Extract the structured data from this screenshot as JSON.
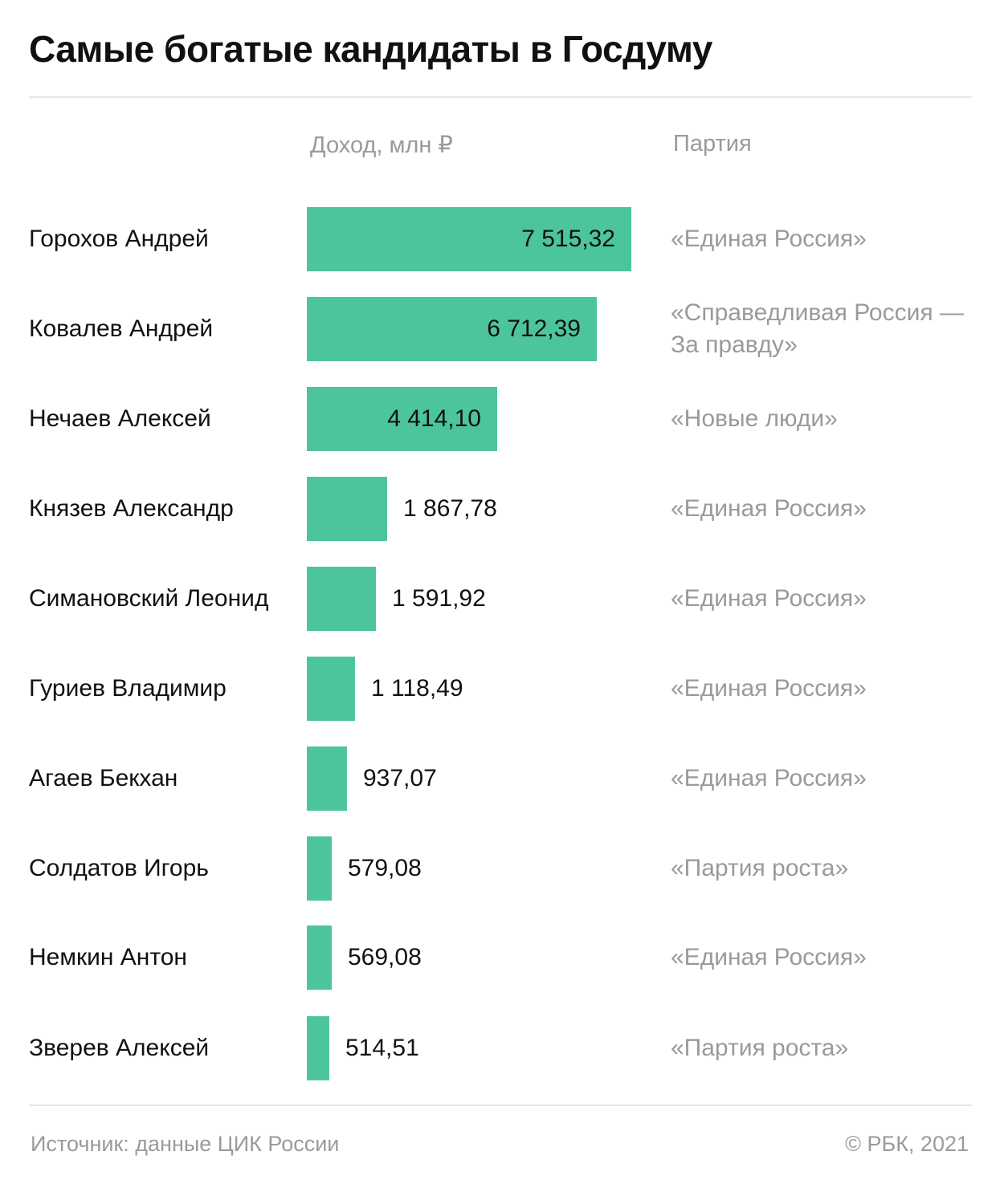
{
  "title": "Самые богатые кандидаты в Госдуму",
  "columns": {
    "income": "Доход, млн ₽",
    "party": "Партия"
  },
  "footer": {
    "source": "Источник:  данные ЦИК России",
    "copyright": "©  РБК, 2021"
  },
  "colors": {
    "bar": "#4dc59b",
    "text": "#111111",
    "muted": "#9a9a9a",
    "rule": "#e6e6e6"
  },
  "chart_data": {
    "type": "bar",
    "orientation": "horizontal",
    "title": "Самые богатые кандидаты в Госдуму",
    "value_label": "Доход, млн ₽",
    "categories": [
      "Горохов Андрей",
      "Ковалев Андрей",
      "Нечаев Алексей",
      "Князев Александр",
      "Симановский Леонид",
      "Гуриев Владимир",
      "Агаев Бекхан",
      "Солдатов Игорь",
      "Немкин Антон",
      "Зверев Алексей"
    ],
    "values": [
      7515.32,
      6712.39,
      4414.1,
      1867.78,
      1591.92,
      1118.49,
      937.07,
      579.08,
      569.08,
      514.51
    ],
    "value_labels": [
      "7 515,32",
      "6 712,39",
      "4 414,10",
      "1 867,78",
      "1 591,92",
      "1 118,49",
      "937,07",
      "579,08",
      "569,08",
      "514,51"
    ],
    "parties": [
      "«Единая Россия»",
      "«Справедливая Россия — За правду»",
      "«Новые люди»",
      "«Единая Россия»",
      "«Единая Россия»",
      "«Единая Россия»",
      "«Единая Россия»",
      "«Партия роста»",
      "«Единая Россия»",
      "«Партия роста»"
    ],
    "xlim": [
      0,
      7515.32
    ],
    "grid": false,
    "legend": "none"
  }
}
